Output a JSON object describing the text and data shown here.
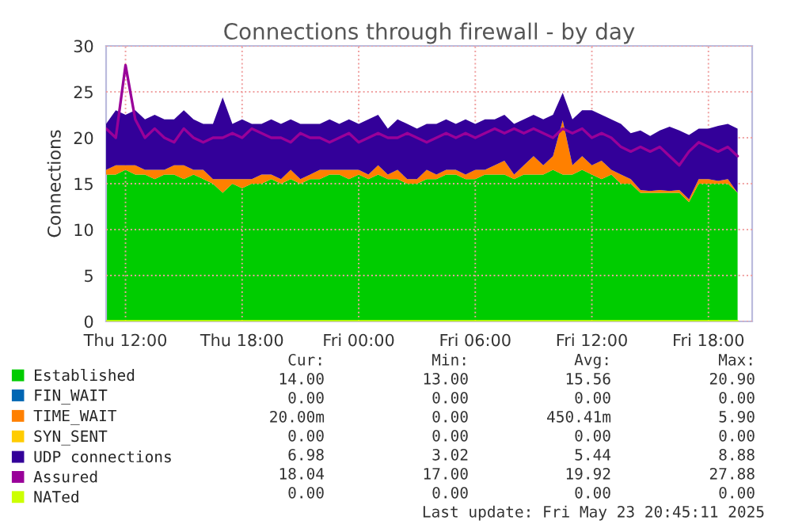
{
  "chart_data": {
    "type": "area",
    "title": "Connections through firewall - by day",
    "ylabel": "Connections",
    "stacked": true,
    "grid": true,
    "legend": "bottom",
    "x": [
      "2025-05-22T11:00",
      "2025-05-22T11:30",
      "2025-05-22T12:00",
      "2025-05-22T12:30",
      "2025-05-22T13:00",
      "2025-05-22T13:30",
      "2025-05-22T14:00",
      "2025-05-22T14:30",
      "2025-05-22T15:00",
      "2025-05-22T15:30",
      "2025-05-22T16:00",
      "2025-05-22T16:30",
      "2025-05-22T17:00",
      "2025-05-22T17:30",
      "2025-05-22T18:00",
      "2025-05-22T18:30",
      "2025-05-22T19:00",
      "2025-05-22T19:30",
      "2025-05-22T20:00",
      "2025-05-22T20:30",
      "2025-05-22T21:00",
      "2025-05-22T21:30",
      "2025-05-22T22:00",
      "2025-05-22T22:30",
      "2025-05-22T23:00",
      "2025-05-22T23:30",
      "2025-05-23T00:00",
      "2025-05-23T00:30",
      "2025-05-23T01:00",
      "2025-05-23T01:30",
      "2025-05-23T02:00",
      "2025-05-23T02:30",
      "2025-05-23T03:00",
      "2025-05-23T03:30",
      "2025-05-23T04:00",
      "2025-05-23T04:30",
      "2025-05-23T05:00",
      "2025-05-23T05:30",
      "2025-05-23T06:00",
      "2025-05-23T06:30",
      "2025-05-23T07:00",
      "2025-05-23T07:30",
      "2025-05-23T08:00",
      "2025-05-23T08:30",
      "2025-05-23T09:00",
      "2025-05-23T09:30",
      "2025-05-23T10:00",
      "2025-05-23T10:30",
      "2025-05-23T11:00",
      "2025-05-23T11:30",
      "2025-05-23T12:00",
      "2025-05-23T12:30",
      "2025-05-23T13:00",
      "2025-05-23T13:30",
      "2025-05-23T14:00",
      "2025-05-23T14:30",
      "2025-05-23T15:00",
      "2025-05-23T15:30",
      "2025-05-23T16:00",
      "2025-05-23T16:30",
      "2025-05-23T17:00",
      "2025-05-23T17:30",
      "2025-05-23T18:00",
      "2025-05-23T18:30",
      "2025-05-23T19:00",
      "2025-05-23T19:30"
    ],
    "xlim": [
      "2025-05-22T11:00",
      "2025-05-23T20:15"
    ],
    "ylim": [
      0,
      30
    ],
    "yticks": [
      0,
      5,
      10,
      15,
      20,
      25,
      30
    ],
    "xticks": [
      {
        "value": "2025-05-22T12:00",
        "label": "Thu 12:00"
      },
      {
        "value": "2025-05-22T18:00",
        "label": "Thu 18:00"
      },
      {
        "value": "2025-05-23T00:00",
        "label": "Fri 00:00"
      },
      {
        "value": "2025-05-23T06:00",
        "label": "Fri 06:00"
      },
      {
        "value": "2025-05-23T12:00",
        "label": "Fri 12:00"
      },
      {
        "value": "2025-05-23T18:00",
        "label": "Fri 18:00"
      }
    ],
    "series": [
      {
        "name": "Established",
        "color": "#00cc00",
        "values": [
          16,
          16,
          16.5,
          16,
          16,
          15.5,
          16,
          16,
          15.5,
          16,
          15.5,
          15,
          14,
          15,
          14.5,
          15,
          15,
          15.5,
          15,
          15.5,
          15,
          15.5,
          15.5,
          16,
          16,
          15.5,
          16,
          15.5,
          16,
          15.5,
          15.5,
          15,
          15,
          15.5,
          15.5,
          16,
          16,
          15.5,
          15.5,
          16,
          16,
          16,
          15.5,
          16,
          16,
          16,
          16.5,
          16,
          16,
          16.5,
          16,
          15.5,
          16,
          15,
          15,
          14,
          14,
          14,
          14,
          14,
          13,
          15,
          15,
          15,
          15,
          14
        ]
      },
      {
        "name": "FIN_WAIT",
        "color": "#0066b3",
        "values": [
          null,
          null,
          null,
          null,
          null,
          null,
          null,
          null,
          null,
          null,
          null,
          null,
          null,
          null,
          null,
          null,
          null,
          null,
          null,
          null,
          null,
          null,
          null,
          null,
          null,
          null,
          null,
          null,
          null,
          null,
          null,
          null,
          null,
          null,
          null,
          null,
          null,
          null,
          null,
          null,
          null,
          null,
          null,
          null,
          null,
          null,
          null,
          null,
          null,
          null,
          null,
          null,
          null,
          null,
          null,
          null,
          null,
          null,
          null,
          null,
          null,
          null,
          null,
          null,
          null,
          null
        ]
      },
      {
        "name": "TIME_WAIT",
        "color": "#ff8000",
        "values": [
          0.5,
          1,
          0.5,
          1,
          0.5,
          1,
          0.5,
          1,
          1.5,
          0.5,
          1,
          0.5,
          1.5,
          0.5,
          1,
          0.5,
          1,
          0.5,
          0.5,
          1,
          0.5,
          0.5,
          1,
          0.5,
          0.5,
          1,
          0.5,
          0.5,
          1,
          0.5,
          1,
          0.5,
          0.5,
          1,
          0.5,
          0.5,
          0.5,
          0.5,
          1,
          0.5,
          1,
          1.5,
          0.5,
          1,
          2,
          1,
          1.5,
          5.9,
          1,
          1.5,
          1,
          2,
          0.5,
          1,
          0.5,
          0.3,
          0.2,
          0.3,
          0.2,
          0.3,
          0.3,
          0.5,
          0.5,
          0.3,
          0.5,
          0
        ]
      },
      {
        "name": "SYN_SENT",
        "color": "#ffcc00",
        "values": [
          null,
          null,
          null,
          null,
          null,
          null,
          null,
          null,
          null,
          null,
          null,
          null,
          null,
          null,
          null,
          null,
          null,
          null,
          null,
          null,
          null,
          null,
          null,
          null,
          null,
          null,
          null,
          null,
          null,
          null,
          null,
          null,
          null,
          null,
          null,
          null,
          null,
          null,
          null,
          null,
          null,
          null,
          null,
          null,
          null,
          null,
          null,
          null,
          null,
          null,
          null,
          null,
          null,
          null,
          null,
          null,
          null,
          null,
          null,
          null,
          null,
          null,
          null,
          null,
          null,
          null
        ]
      },
      {
        "name": "UDP connections",
        "color": "#330099",
        "values": [
          5,
          6,
          5.5,
          6,
          5.5,
          6,
          5.5,
          5,
          6,
          5.5,
          5,
          6,
          8.9,
          6,
          6.5,
          6,
          5.5,
          6,
          6,
          5.5,
          6,
          5.5,
          5,
          5.5,
          5,
          5.5,
          5,
          6,
          5.5,
          5,
          5.5,
          6,
          5.5,
          5,
          5.5,
          5.5,
          5,
          6,
          5,
          5.5,
          5,
          5,
          5.5,
          5,
          4.5,
          5,
          4.5,
          3,
          5,
          5,
          6,
          5,
          5.5,
          5.5,
          5,
          6.5,
          6,
          6.5,
          7,
          6.5,
          7,
          5.5,
          5.5,
          6,
          6,
          7
        ]
      },
      {
        "name": "Assured",
        "type": "line",
        "color": "#990099",
        "values": [
          21,
          20,
          27.9,
          22,
          20,
          21,
          20,
          19.5,
          21,
          20,
          19.5,
          20,
          20,
          20.5,
          20,
          21,
          20.5,
          20,
          20,
          19.5,
          20.5,
          20,
          20,
          19.5,
          20,
          20.5,
          19.5,
          20,
          20.5,
          20,
          20,
          20.5,
          20,
          19.5,
          20,
          20.5,
          20,
          20.5,
          20,
          20.5,
          21,
          20.5,
          21,
          20.5,
          21,
          20.5,
          20,
          21,
          20.5,
          21,
          20,
          20.5,
          20,
          19,
          18.5,
          19,
          18.5,
          19,
          18,
          17,
          18.5,
          19.5,
          19,
          18.5,
          19,
          18
        ]
      },
      {
        "name": "NATed",
        "type": "line",
        "color": "#ccff00",
        "values": [
          0,
          0,
          0,
          0,
          0,
          0,
          0,
          0,
          0,
          0,
          0,
          0,
          0,
          0,
          0,
          0,
          0,
          0,
          0,
          0,
          0,
          0,
          0,
          0,
          0,
          0,
          0,
          0,
          0,
          0,
          0,
          0,
          0,
          0,
          0,
          0,
          0,
          0,
          0,
          0,
          0,
          0,
          0,
          0,
          0,
          0,
          0,
          0,
          0,
          0,
          0,
          0,
          0,
          0,
          0,
          0,
          0,
          0,
          0,
          0,
          0,
          0,
          0,
          0,
          0,
          0
        ]
      }
    ],
    "annotations": [
      "Cur:",
      "Min:",
      "Avg:",
      "Max:",
      "14.00",
      "13.00",
      "15.56",
      "20.90",
      "0.00",
      "0.00",
      "0.00",
      "0.00",
      "20.00m",
      "0.00",
      "450.41m",
      "5.90",
      "0.00",
      "0.00",
      "0.00",
      "0.00",
      "6.98",
      "3.02",
      "5.44",
      "8.88",
      "18.04",
      "17.00",
      "19.92",
      "27.88",
      "0.00",
      "0.00",
      "0.00",
      "0.00",
      "Last update: Fri May 23 20:45:11 2025"
    ]
  }
}
